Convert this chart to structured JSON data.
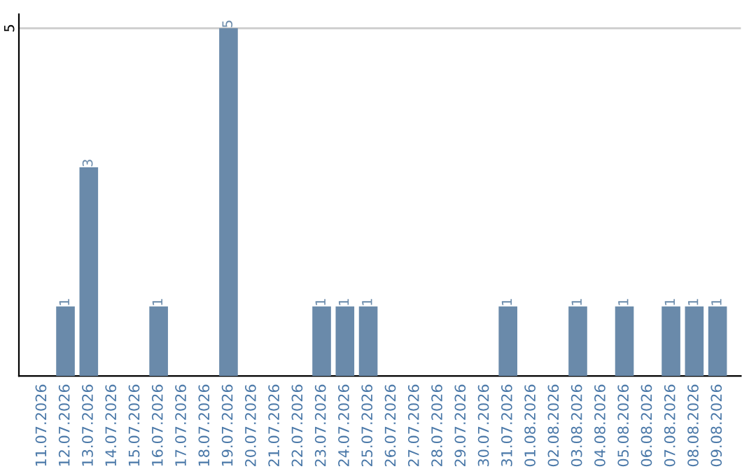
{
  "chart_data": {
    "type": "bar",
    "categories": [
      "11.07.2026",
      "12.07.2026",
      "13.07.2026",
      "14.07.2026",
      "15.07.2026",
      "16.07.2026",
      "17.07.2026",
      "18.07.2026",
      "19.07.2026",
      "20.07.2026",
      "21.07.2026",
      "22.07.2026",
      "23.07.2026",
      "24.07.2026",
      "25.07.2026",
      "26.07.2026",
      "27.07.2026",
      "28.07.2026",
      "29.07.2026",
      "30.07.2026",
      "31.07.2026",
      "01.08.2026",
      "02.08.2026",
      "03.08.2026",
      "04.08.2026",
      "05.08.2026",
      "06.08.2026",
      "07.08.2026",
      "08.08.2026",
      "09.08.2026"
    ],
    "values": [
      0,
      1,
      3,
      0,
      0,
      1,
      0,
      0,
      5,
      0,
      0,
      0,
      1,
      1,
      1,
      0,
      0,
      0,
      0,
      0,
      1,
      0,
      0,
      1,
      0,
      1,
      0,
      1,
      1,
      1
    ],
    "value_labels": [
      null,
      "1",
      "3",
      null,
      null,
      "1",
      null,
      null,
      "5",
      null,
      null,
      null,
      "1",
      "1",
      "1",
      null,
      null,
      null,
      null,
      null,
      "1",
      null,
      null,
      "1",
      null,
      "1",
      null,
      "1",
      "1",
      "1"
    ],
    "color": "#6a8aaa",
    "ylim": [
      0,
      5.2
    ],
    "yticks": [
      5
    ],
    "grid": "y"
  }
}
